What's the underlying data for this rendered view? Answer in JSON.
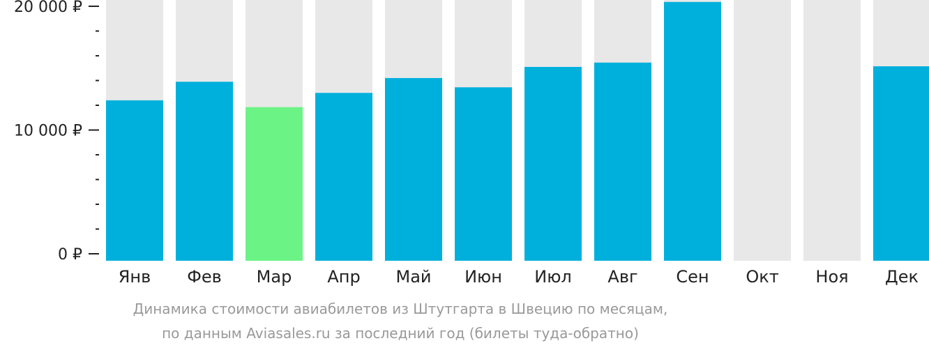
{
  "caption": {
    "line1": "Динамика стоимости авиабилетов из Штутгарта в Швецию по месяцам,",
    "line2": "по данным Aviasales.ru за последний год (билеты туда-обратно)"
  },
  "colors": {
    "bar": "#00b0dc",
    "highlight": "#6cf386",
    "background_bar": "#e8e8e8",
    "axis": "#222222",
    "caption": "#999999"
  },
  "chart_data": {
    "type": "bar",
    "categories": [
      "Янв",
      "Фев",
      "Мар",
      "Апр",
      "Май",
      "Июн",
      "Июл",
      "Авг",
      "Сен",
      "Окт",
      "Ноя",
      "Дек"
    ],
    "values": [
      12400,
      13900,
      11850,
      13000,
      14200,
      13450,
      15100,
      15450,
      20350,
      null,
      null,
      15150
    ],
    "highlight_index": 2,
    "ylim": [
      0,
      20500
    ],
    "yticks": [
      {
        "value": 20000,
        "label": "20 000 ₽"
      },
      {
        "value": 10000,
        "label": "10 000 ₽"
      },
      {
        "value": 0,
        "label": "0 ₽"
      }
    ],
    "minor_tick_step": 2000,
    "grid": false,
    "title": "",
    "xlabel": "",
    "ylabel": ""
  }
}
